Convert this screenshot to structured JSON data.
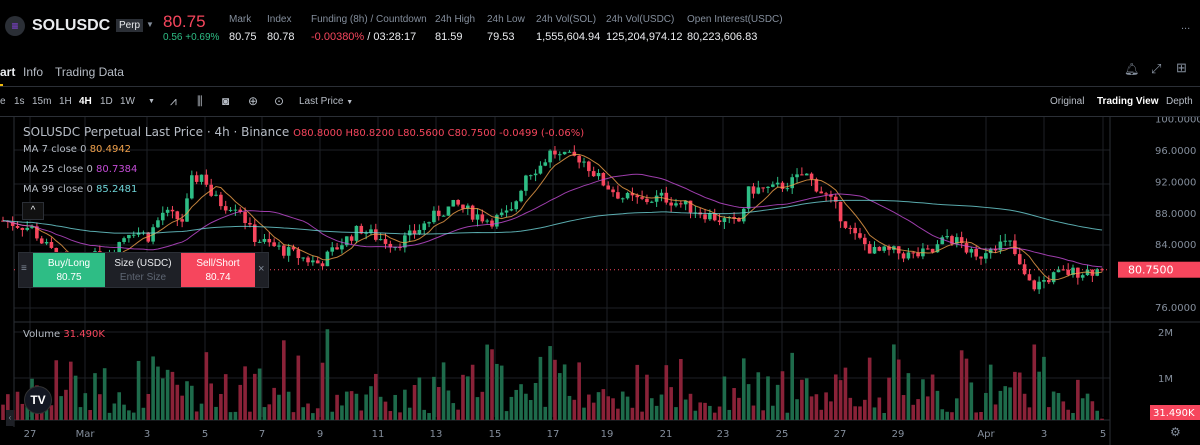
{
  "header": {
    "symbol": "SOLUSDC",
    "badge": "Perp",
    "price": "80.75",
    "change": "0.56 +0.69%",
    "stats": [
      {
        "label": "Mark",
        "value": "80.75"
      },
      {
        "label": "Index",
        "value": "80.78"
      },
      {
        "label": "Funding (8h) / Countdown",
        "value": "-0.00380%",
        "value2": "/ 03:28:17"
      },
      {
        "label": "24h High",
        "value": "81.59"
      },
      {
        "label": "24h Low",
        "value": "79.53"
      },
      {
        "label": "24h Vol(SOL)",
        "value": "1,555,604.94"
      },
      {
        "label": "24h Vol(USDC)",
        "value": "125,204,974.12"
      },
      {
        "label": "Open Interest(USDC)",
        "value": "80,223,606.83"
      }
    ],
    "more": "..."
  },
  "tabs": [
    "art",
    "Info",
    "Trading Data"
  ],
  "toolbar": {
    "first": "e",
    "intervals": [
      "1s",
      "15m",
      "1H",
      "4H",
      "1D",
      "1W"
    ],
    "active_interval": "4H",
    "price_type": "Last Price",
    "views": [
      "Original",
      "Trading View",
      "Depth"
    ],
    "active_view": "Trading View"
  },
  "legend": {
    "title": "SOLUSDC Perpetual Last Price · 4h · Binance",
    "ohlc": "O80.8000  H80.8200  L80.5600  C80.7500  -0.0499 (-0.06%)",
    "ma": [
      {
        "label": "MA 7 close 0",
        "value": "80.4942",
        "color": "#f0a04b"
      },
      {
        "label": "MA 25 close 0",
        "value": "80.7384",
        "color": "#c44cd6"
      },
      {
        "label": "MA 99 close 0",
        "value": "85.2481",
        "color": "#6fd4d8"
      }
    ],
    "volume_label": "Volume",
    "volume_value": "31.490K"
  },
  "trade": {
    "buy_label": "Buy/Long",
    "buy_price": "80.75",
    "size_label": "Size (USDC)",
    "size_placeholder": "Enter Size",
    "sell_label": "Sell/Short",
    "sell_price": "80.74"
  },
  "colors": {
    "up": "#2ebd85",
    "down": "#f6465d",
    "upVol": "#1e6b4b",
    "downVol": "#8a2238"
  },
  "chart_data": {
    "type": "candlestick",
    "interval": "4h",
    "ylim": [
      74,
      100
    ],
    "price_ticks": [
      "100.0000",
      "96.0000",
      "92.0000",
      "88.0000",
      "84.0000",
      "76.0000"
    ],
    "last_price": "80.7500",
    "volume_ticks": [
      "2M",
      "1M"
    ],
    "last_volume": "31.490K",
    "x_labels": [
      "27",
      "Mar",
      "3",
      "5",
      "7",
      "9",
      "11",
      "13",
      "15",
      "17",
      "19",
      "21",
      "23",
      "25",
      "27",
      "29",
      "Apr",
      "3",
      "5"
    ],
    "close_path_by_day": [
      [
        0,
        87
      ],
      [
        1,
        86
      ],
      [
        1.4,
        84
      ],
      [
        2,
        82
      ],
      [
        2.4,
        80
      ],
      [
        2.9,
        82
      ],
      [
        3.7,
        83
      ],
      [
        4.4,
        86
      ],
      [
        5,
        85
      ],
      [
        5.5,
        88
      ],
      [
        6.2,
        87
      ],
      [
        6.5,
        92
      ],
      [
        6.9,
        93
      ],
      [
        7.2,
        90
      ],
      [
        7.6,
        89
      ],
      [
        8.1,
        89
      ],
      [
        8.6,
        85
      ],
      [
        9.1,
        84
      ],
      [
        9.8,
        83
      ],
      [
        10.5,
        82
      ],
      [
        10.9,
        81.5
      ],
      [
        11.6,
        84
      ],
      [
        12.3,
        86
      ],
      [
        12.8,
        85
      ],
      [
        13.5,
        84
      ],
      [
        14,
        85
      ],
      [
        15,
        88
      ],
      [
        15.6,
        89
      ],
      [
        16.1,
        88
      ],
      [
        16.8,
        87
      ],
      [
        17.5,
        88
      ],
      [
        18,
        93
      ],
      [
        18.5,
        94
      ],
      [
        18.9,
        96
      ],
      [
        19.2,
        95
      ],
      [
        19.9,
        95
      ],
      [
        20.6,
        92
      ],
      [
        21.3,
        90
      ],
      [
        22,
        89.5
      ],
      [
        22.7,
        90
      ],
      [
        23.4,
        89
      ],
      [
        24.1,
        88
      ],
      [
        24.8,
        87
      ],
      [
        25.3,
        86.5
      ],
      [
        25.7,
        91
      ],
      [
        26.5,
        91
      ],
      [
        27.2,
        92
      ],
      [
        27.6,
        93
      ],
      [
        28.1,
        91
      ],
      [
        28.6,
        89
      ],
      [
        29.3,
        85
      ],
      [
        30,
        83
      ],
      [
        30.7,
        83
      ],
      [
        31.3,
        82.5
      ],
      [
        32,
        83
      ],
      [
        32.5,
        85
      ],
      [
        33,
        84
      ],
      [
        33.5,
        82
      ],
      [
        34,
        84
      ],
      [
        34.7,
        84
      ],
      [
        35,
        81
      ],
      [
        35.4,
        78.5
      ],
      [
        35.9,
        79.5
      ],
      [
        36.4,
        80.3
      ],
      [
        37.1,
        80.5
      ],
      [
        37.8,
        80.75
      ]
    ]
  }
}
